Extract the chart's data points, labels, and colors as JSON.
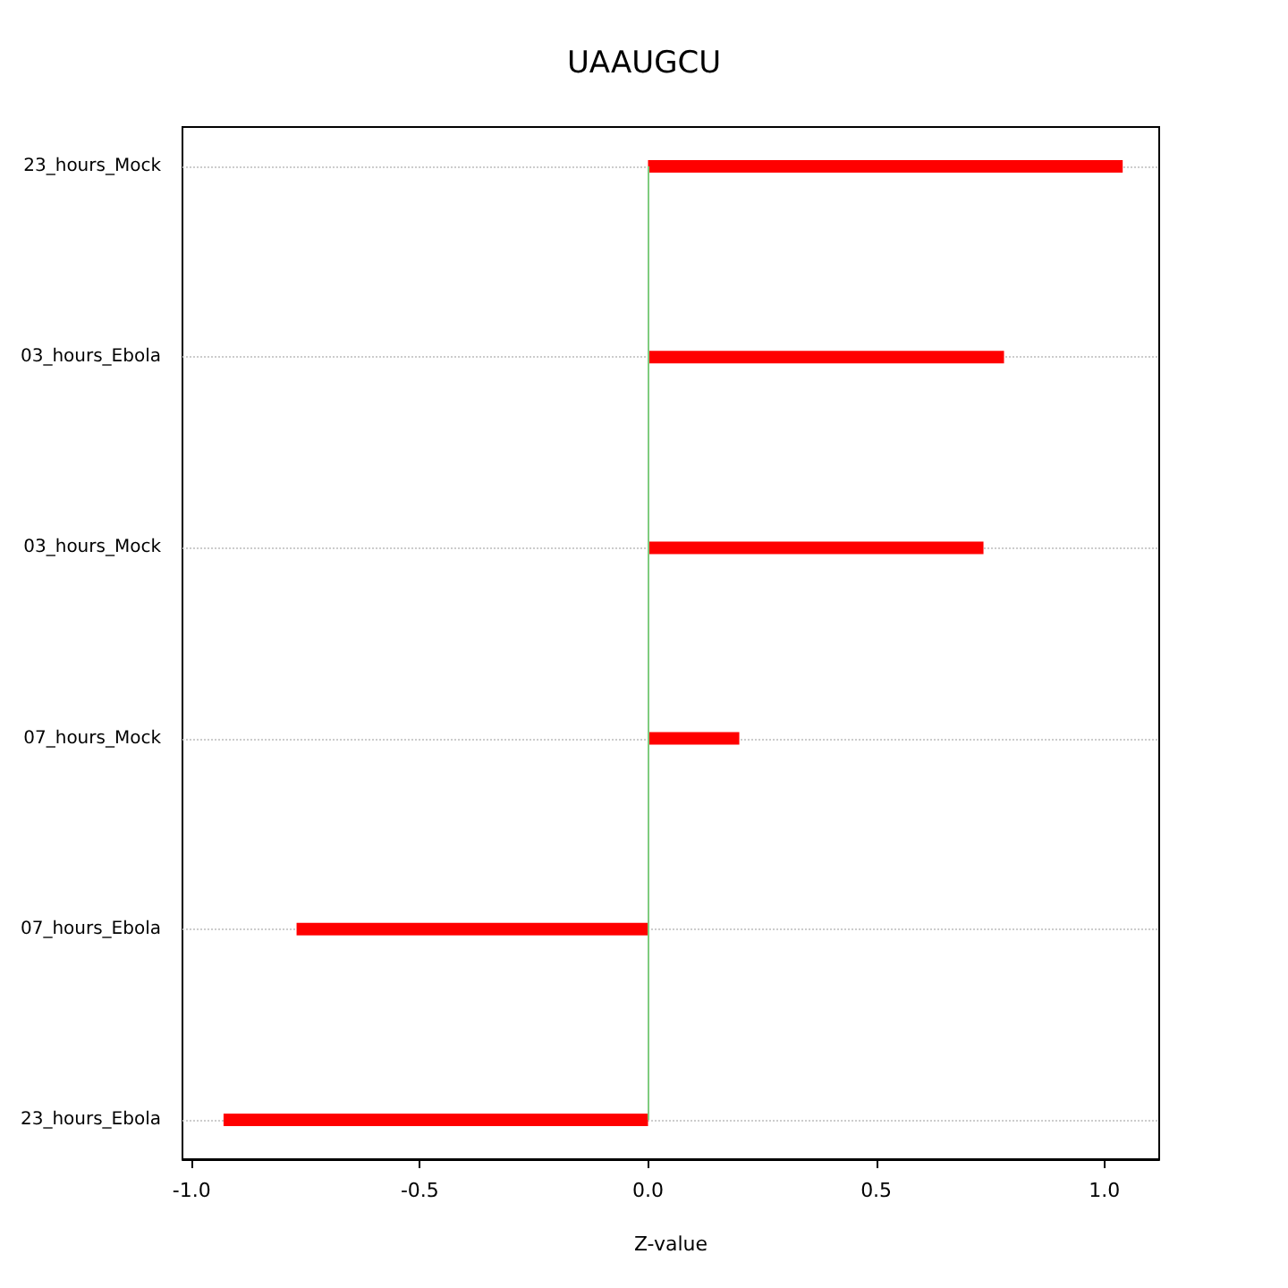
{
  "chart_data": {
    "type": "bar",
    "orientation": "horizontal",
    "title": "UAAUGCU",
    "xlabel": "Z-value",
    "categories": [
      "23_hours_Mock",
      "03_hours_Ebola",
      "03_hours_Mock",
      "07_hours_Mock",
      "07_hours_Ebola",
      "23_hours_Ebola"
    ],
    "values": [
      1.04,
      0.78,
      0.735,
      0.2,
      -0.77,
      -0.93
    ],
    "color": "#ff0000",
    "xlim": [
      -1.02,
      1.12
    ],
    "xticks": [
      {
        "value": -1,
        "label": "-1.0"
      },
      -0.5,
      {
        "value": 0,
        "label": "0.0"
      },
      0.5,
      {
        "value": 1,
        "label": "1.0"
      }
    ],
    "ref_lines": [
      {
        "axis": "x",
        "value": 0,
        "color": "#7fcc7f"
      }
    ],
    "grid": "y"
  }
}
